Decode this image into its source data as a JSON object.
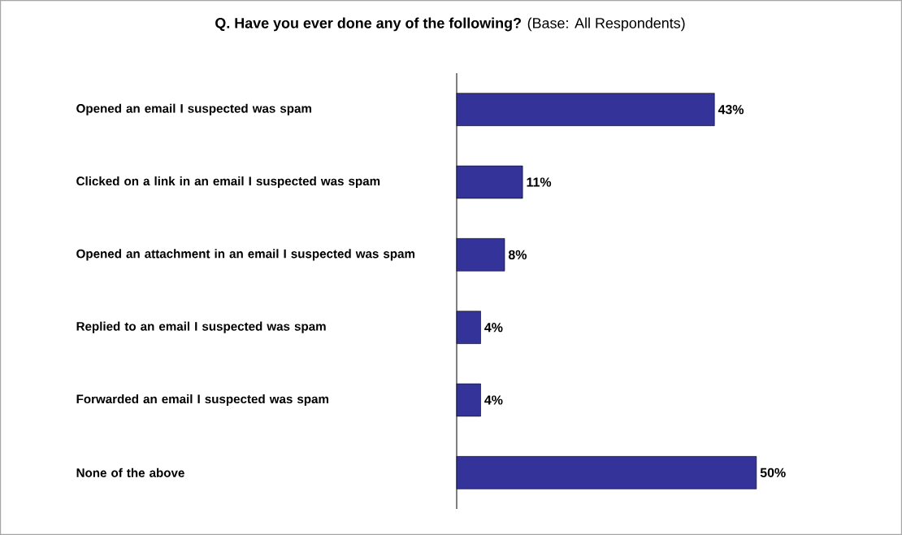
{
  "chart_data": {
    "type": "bar",
    "orientation": "horizontal",
    "title": "**Q. Have you ever done any of the following?** (Base: All Respondents)",
    "categories": [
      "Opened an email I suspected was spam",
      "Clicked on a link in an email I suspected was spam",
      "Opened an attachment in an email I suspected was spam",
      "Replied to an email I suspected was spam",
      "Forwarded an email I suspected was spam",
      "None of the above"
    ],
    "values": [
      43,
      11,
      8,
      4,
      4,
      50
    ],
    "value_labels": [
      "43%",
      "11%",
      "8%",
      "4%",
      "4%",
      "50%"
    ],
    "color": "#333399"
  }
}
